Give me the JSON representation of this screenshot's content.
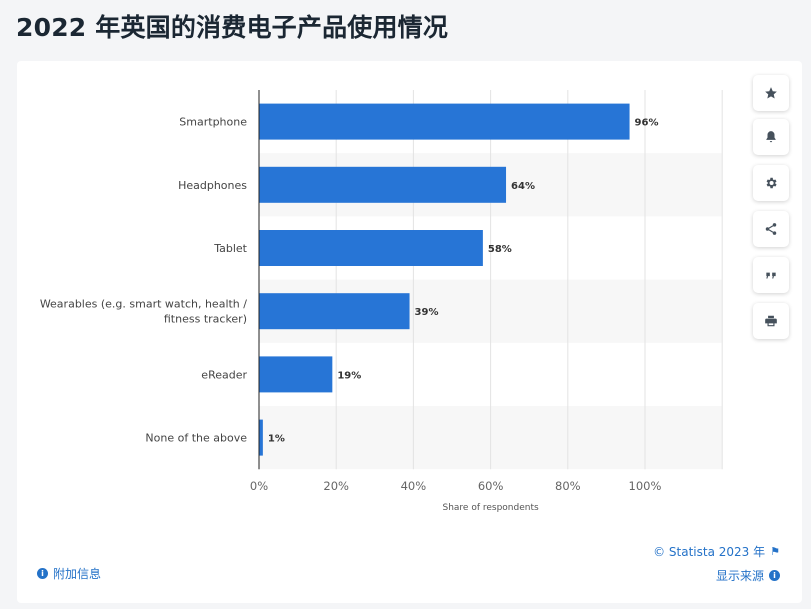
{
  "page": {
    "title": "2022 年英国的消费电子产品使用情况"
  },
  "toolbar": {
    "buttons": [
      {
        "name": "favorite",
        "icon": "star-icon"
      },
      {
        "name": "notification",
        "icon": "bell-icon"
      },
      {
        "name": "settings",
        "icon": "gear-icon"
      },
      {
        "name": "share",
        "icon": "share-icon"
      },
      {
        "name": "cite",
        "icon": "quote-icon"
      },
      {
        "name": "print",
        "icon": "print-icon"
      }
    ]
  },
  "footer": {
    "additional_info": "附加信息",
    "copyright": "© Statista 2023 年",
    "show_source": "显示来源"
  },
  "colors": {
    "bar": "#2775d6",
    "link": "#2472c8",
    "title": "#1b2733",
    "stripe": "#f7f7f7"
  },
  "chart_data": {
    "type": "bar",
    "orientation": "horizontal",
    "categories": [
      "Smartphone",
      "Headphones",
      "Tablet",
      "Wearables (e.g. smart watch, health / fitness tracker)",
      "eReader",
      "None of the above"
    ],
    "category_lines": [
      [
        "Smartphone"
      ],
      [
        "Headphones"
      ],
      [
        "Tablet"
      ],
      [
        "Wearables (e.g. smart watch, health /",
        "fitness tracker)"
      ],
      [
        "eReader"
      ],
      [
        "None of the above"
      ]
    ],
    "values": [
      96,
      64,
      58,
      39,
      19,
      1
    ],
    "data_labels": [
      "96%",
      "64%",
      "58%",
      "39%",
      "19%",
      "1%"
    ],
    "xlabel": "Share of respondents",
    "xlim": [
      0,
      120
    ],
    "xticks": [
      0,
      20,
      40,
      60,
      80,
      100
    ],
    "xtick_labels": [
      "0%",
      "20%",
      "40%",
      "60%",
      "80%",
      "100%"
    ],
    "grid": true
  }
}
